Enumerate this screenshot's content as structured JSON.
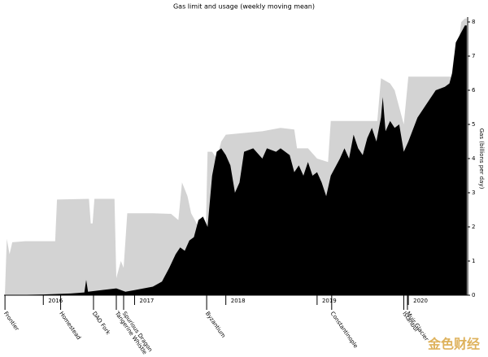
{
  "chart_data": {
    "type": "area",
    "title": "Gas limit and usage (weekly moving mean)",
    "y_label": "Gas (billions per day)",
    "xlim": [
      2015.57,
      2020.65
    ],
    "xticks": [
      2016,
      2017,
      2018,
      2019,
      2020
    ],
    "ylim": [
      0,
      8
    ],
    "yticks": [
      0,
      1,
      2,
      3,
      4,
      5,
      6,
      7,
      8
    ],
    "series": [
      {
        "color": "#d3d3d3",
        "x": [
          2015.58,
          2015.6,
          2015.63,
          2015.66,
          2015.8,
          2016.0,
          2016.13,
          2016.15,
          2016.5,
          2016.52,
          2016.54,
          2016.56,
          2016.78,
          2016.8,
          2016.85,
          2016.88,
          2016.92,
          2017.2,
          2017.4,
          2017.48,
          2017.52,
          2017.58,
          2017.62,
          2017.68,
          2017.72,
          2017.75,
          2017.78,
          2017.8,
          2017.85,
          2017.9,
          2017.95,
          2018.0,
          2018.2,
          2018.4,
          2018.6,
          2018.75,
          2018.78,
          2018.9,
          2019.0,
          2019.12,
          2019.15,
          2019.5,
          2019.66,
          2019.7,
          2019.8,
          2019.85,
          2019.95,
          2020.0,
          2020.3,
          2020.47,
          2020.5,
          2020.55,
          2020.58,
          2020.62,
          2020.64
        ],
        "values": [
          0.1,
          1.65,
          1.2,
          1.55,
          1.58,
          1.58,
          1.58,
          2.8,
          2.82,
          2.1,
          2.1,
          2.82,
          2.82,
          0.5,
          1.0,
          0.8,
          2.4,
          2.4,
          2.38,
          2.2,
          3.3,
          2.9,
          2.4,
          2.1,
          2.0,
          1.9,
          1.8,
          4.2,
          4.2,
          4.0,
          4.5,
          4.7,
          4.75,
          4.8,
          4.9,
          4.85,
          4.3,
          4.3,
          4.0,
          3.9,
          5.1,
          5.1,
          5.1,
          6.35,
          6.2,
          6.0,
          5.0,
          6.4,
          6.4,
          6.4,
          7.0,
          7.4,
          8.0,
          8.1,
          8.1
        ]
      },
      {
        "color": "#000000",
        "x": [
          2015.58,
          2016.0,
          2016.3,
          2016.45,
          2016.47,
          2016.49,
          2016.8,
          2016.9,
          2017.0,
          2017.2,
          2017.3,
          2017.38,
          2017.45,
          2017.5,
          2017.55,
          2017.6,
          2017.65,
          2017.7,
          2017.75,
          2017.8,
          2017.85,
          2017.9,
          2017.95,
          2018.0,
          2018.05,
          2018.1,
          2018.15,
          2018.2,
          2018.3,
          2018.4,
          2018.45,
          2018.55,
          2018.6,
          2018.7,
          2018.75,
          2018.8,
          2018.85,
          2018.9,
          2018.95,
          2019.0,
          2019.05,
          2019.1,
          2019.15,
          2019.25,
          2019.3,
          2019.35,
          2019.4,
          2019.45,
          2019.5,
          2019.55,
          2019.6,
          2019.65,
          2019.7,
          2019.72,
          2019.75,
          2019.8,
          2019.85,
          2019.9,
          2019.95,
          2020.0,
          2020.1,
          2020.2,
          2020.3,
          2020.4,
          2020.45,
          2020.48,
          2020.52,
          2020.58,
          2020.62,
          2020.64
        ],
        "values": [
          0,
          0.02,
          0.05,
          0.08,
          0.45,
          0.1,
          0.2,
          0.1,
          0.15,
          0.25,
          0.4,
          0.8,
          1.2,
          1.4,
          1.3,
          1.6,
          1.7,
          2.2,
          2.3,
          2.0,
          3.5,
          4.2,
          4.3,
          4.1,
          3.8,
          3.0,
          3.3,
          4.2,
          4.3,
          4.0,
          4.3,
          4.2,
          4.3,
          4.1,
          3.6,
          3.8,
          3.5,
          3.9,
          3.5,
          3.6,
          3.3,
          2.9,
          3.5,
          4.0,
          4.3,
          4.0,
          4.7,
          4.3,
          4.1,
          4.6,
          4.9,
          4.5,
          5.2,
          5.8,
          4.8,
          5.1,
          4.9,
          5.0,
          4.2,
          4.5,
          5.2,
          5.6,
          6.0,
          6.1,
          6.2,
          6.5,
          7.4,
          7.7,
          7.9,
          7.9
        ]
      }
    ],
    "events": [
      {
        "label": "Frontier",
        "x": 2015.58
      },
      {
        "label": "Homestead",
        "x": 2016.19
      },
      {
        "label": "DAO Fork",
        "x": 2016.55
      },
      {
        "label": "Tangerine Whistle",
        "x": 2016.8
      },
      {
        "label": "Spurious Dragon",
        "x": 2016.88
      },
      {
        "label": "Byzantium",
        "x": 2017.79
      },
      {
        "label": "Constantinople",
        "x": 2019.16
      },
      {
        "label": "Istanbul",
        "x": 2019.95
      },
      {
        "label": "Muir Glacier",
        "x": 2019.99
      }
    ]
  },
  "watermark": "金色财经"
}
